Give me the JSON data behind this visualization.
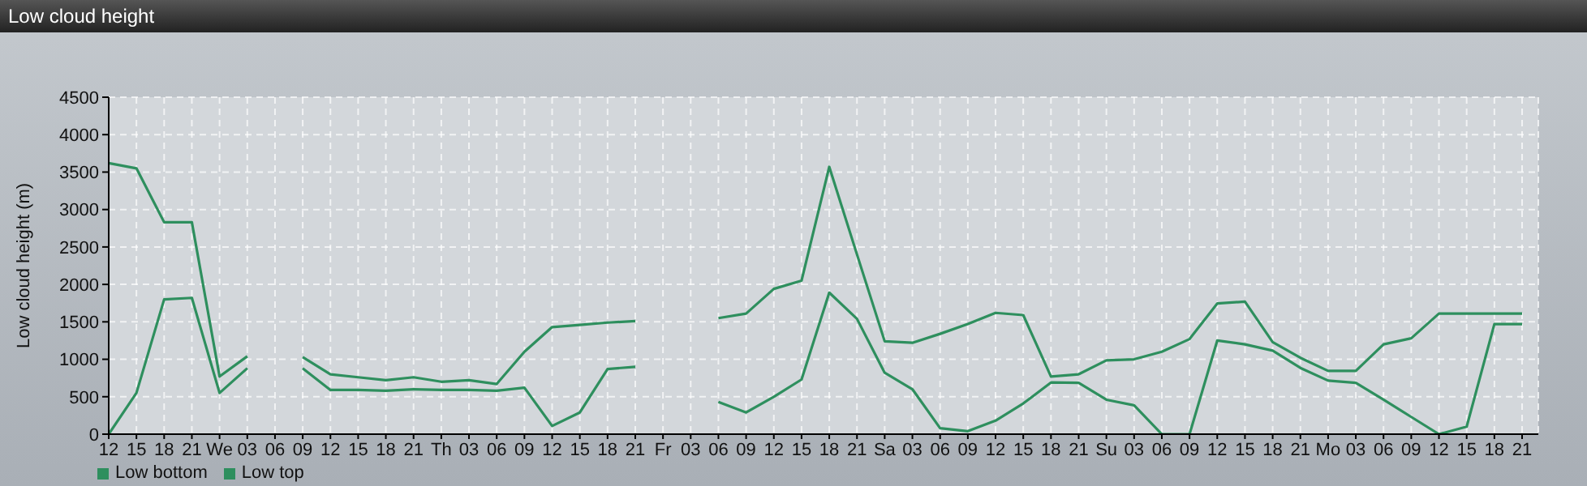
{
  "chart_data": {
    "type": "line",
    "title": "Low cloud height",
    "ylabel": "Low cloud height (m)",
    "categories": [
      "12",
      "15",
      "18",
      "21",
      "We",
      "03",
      "06",
      "09",
      "12",
      "15",
      "18",
      "21",
      "Th",
      "03",
      "06",
      "09",
      "12",
      "15",
      "18",
      "21",
      "Fr",
      "03",
      "06",
      "09",
      "12",
      "15",
      "18",
      "21",
      "Sa",
      "03",
      "06",
      "09",
      "12",
      "15",
      "18",
      "21",
      "Su",
      "03",
      "06",
      "09",
      "12",
      "15",
      "18",
      "21",
      "Mo",
      "03",
      "06",
      "09",
      "12",
      "15",
      "18",
      "21"
    ],
    "series": [
      {
        "name": "Low bottom",
        "color": "#2e8f5e",
        "values": [
          0,
          550,
          1800,
          1820,
          550,
          880,
          null,
          880,
          590,
          590,
          580,
          600,
          590,
          590,
          580,
          620,
          110,
          290,
          870,
          900,
          null,
          null,
          430,
          290,
          500,
          730,
          1890,
          1540,
          820,
          600,
          80,
          40,
          180,
          410,
          690,
          685,
          460,
          385,
          0,
          0,
          1250,
          1200,
          1115,
          885,
          715,
          685,
          460,
          230,
          0,
          100,
          1470,
          1470
        ]
      },
      {
        "name": "Low top",
        "color": "#2e8f5e",
        "values": [
          3620,
          3550,
          2830,
          2830,
          770,
          1040,
          null,
          1030,
          800,
          760,
          720,
          760,
          700,
          720,
          670,
          1100,
          1430,
          1460,
          1490,
          1510,
          null,
          null,
          1550,
          1610,
          1940,
          2050,
          3570,
          2400,
          1240,
          1220,
          1340,
          1470,
          1620,
          1590,
          770,
          800,
          985,
          1000,
          1100,
          1270,
          1745,
          1770,
          1230,
          1020,
          845,
          845,
          1200,
          1280,
          1610,
          1610,
          1610,
          1610
        ]
      }
    ],
    "ylim": [
      0,
      4500
    ],
    "yticks": [
      0,
      500,
      1000,
      1500,
      2000,
      2500,
      3000,
      3500,
      4000,
      4500
    ],
    "grid": true,
    "legend": "bottom left",
    "marker": "none",
    "line_style": "solid"
  }
}
